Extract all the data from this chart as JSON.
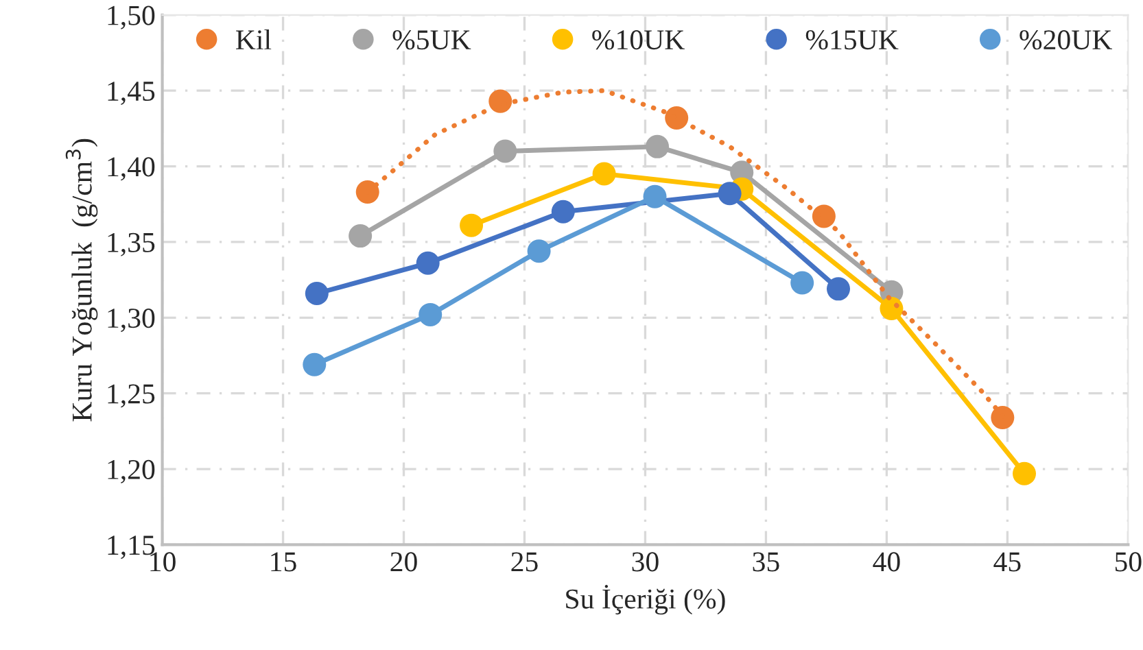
{
  "chart_data": {
    "type": "line",
    "xlabel": "Su İçeriği (%)",
    "ylabel": "Kuru Yoğunluk  (g/cm$^{3}$)",
    "xlim": [
      10,
      50
    ],
    "xticks": [
      10,
      15,
      20,
      25,
      30,
      35,
      40,
      45,
      50
    ],
    "ylim": [
      1.15,
      1.5
    ],
    "yticks": [
      {
        "value": 1.15,
        "label": "1,15"
      },
      {
        "value": 1.2,
        "label": "1,20"
      },
      {
        "value": 1.25,
        "label": "1,25"
      },
      {
        "value": 1.3,
        "label": "1,30"
      },
      {
        "value": 1.35,
        "label": "1,35"
      },
      {
        "value": 1.4,
        "label": "1,40"
      },
      {
        "value": 1.45,
        "label": "1,45"
      },
      {
        "value": 1.5,
        "label": "1,50"
      }
    ],
    "grid": true,
    "legend": "top",
    "marker": "circle",
    "series": [
      {
        "name": "Kil",
        "type": "scatter",
        "color": "#ed7d31",
        "x": [
          18.5,
          24.0,
          31.3,
          37.4,
          44.8
        ],
        "values": [
          1.383,
          1.443,
          1.432,
          1.367,
          1.234
        ]
      },
      {
        "name": "%5UK",
        "color": "#a5a5a5",
        "x": [
          18.2,
          24.2,
          30.5,
          34.0,
          40.2
        ],
        "values": [
          1.354,
          1.41,
          1.413,
          1.396,
          1.317
        ]
      },
      {
        "name": "%10UK",
        "color": "#ffc000",
        "x": [
          22.8,
          28.3,
          34.0,
          40.2,
          45.7
        ],
        "values": [
          1.361,
          1.395,
          1.385,
          1.306,
          1.197
        ]
      },
      {
        "name": "%15UK",
        "color": "#4472c4",
        "x": [
          16.4,
          21.0,
          26.6,
          33.5,
          38.0
        ],
        "values": [
          1.316,
          1.336,
          1.37,
          1.382,
          1.319
        ]
      },
      {
        "name": "%20UK",
        "color": "#5b9bd5",
        "x": [
          16.3,
          21.1,
          25.6,
          30.4,
          36.5
        ],
        "values": [
          1.269,
          1.302,
          1.344,
          1.38,
          1.323
        ]
      },
      {
        "color": "#ed7d31",
        "line_style": "dotted",
        "marker": "none",
        "x": [
          18.5,
          19.4,
          21.3,
          24.0,
          26.6,
          28.3,
          30.8,
          33.5,
          35.9,
          38.0,
          40.1,
          42.0,
          43.9,
          44.8
        ],
        "values": [
          1.383,
          1.395,
          1.421,
          1.441,
          1.449,
          1.45,
          1.436,
          1.413,
          1.385,
          1.357,
          1.313,
          1.283,
          1.252,
          1.235
        ]
      }
    ]
  }
}
